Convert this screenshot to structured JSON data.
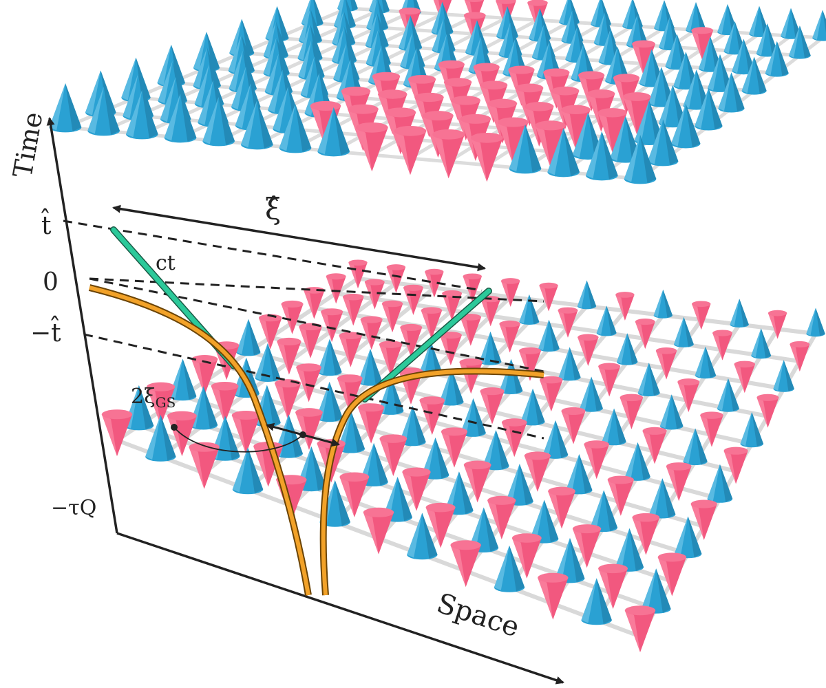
{
  "axes": {
    "time_label": "Time",
    "space_label": "Space",
    "tick_t_hat": "t̂",
    "tick_zero": "0",
    "tick_minus_t_hat": "−t̂",
    "tick_minus_tau_q": "−τQ"
  },
  "annotations": {
    "xi_hat": "ξ̂",
    "ct": "ct",
    "two_xi_gs_prefix": "2ξ",
    "two_xi_gs_sub": "GS"
  },
  "colors": {
    "spin_up": "#2aa1d3",
    "spin_down": "#f2587f",
    "curve": "#f2a229",
    "light_cone": "#2cc99a",
    "grid": "#d9d9d9",
    "axis": "#222222"
  },
  "icons": {
    "up_cone": "blue-cone-icon",
    "down_cone": "pink-cone-icon"
  }
}
